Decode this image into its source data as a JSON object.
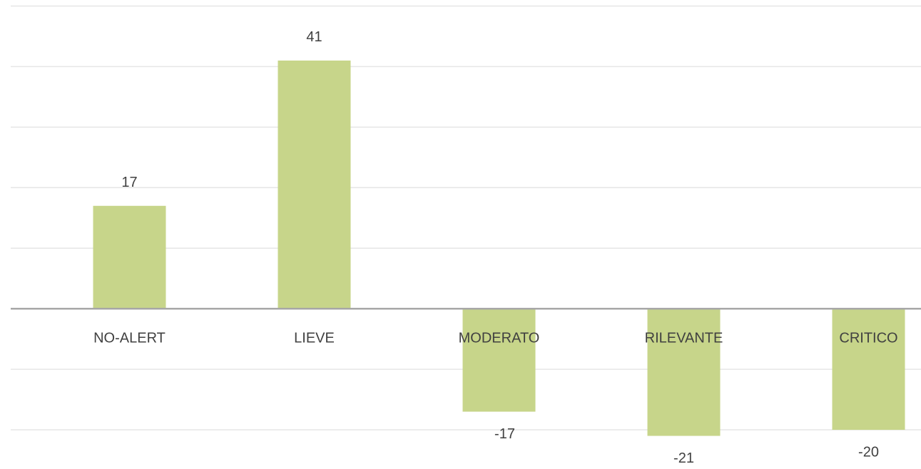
{
  "chart_data": {
    "type": "bar",
    "categories": [
      "NO-ALERT",
      "LIEVE",
      "MODERATO",
      "RILEVANTE",
      "CRITICO"
    ],
    "values": [
      17,
      41,
      -17,
      -21,
      -20
    ],
    "color": "#c7d58a",
    "ylim": [
      -26,
      51
    ],
    "yticks": [
      -20,
      -10,
      0,
      10,
      20,
      30,
      40,
      50
    ],
    "grid": true,
    "tick_labels": false
  }
}
